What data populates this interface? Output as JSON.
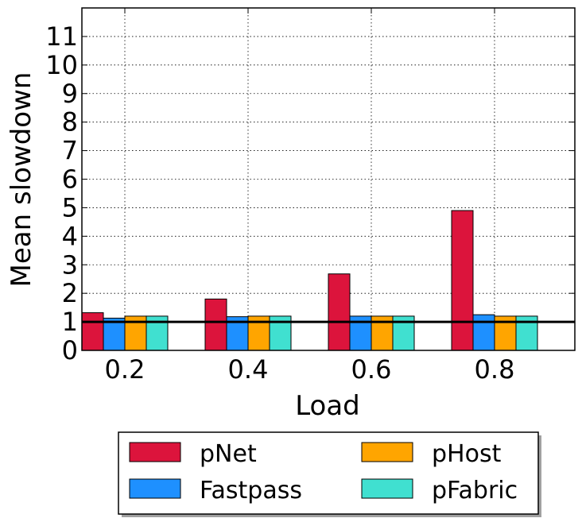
{
  "chart_data": {
    "type": "bar",
    "xlabel": "Load",
    "ylabel": "Mean slowdown",
    "categories": [
      "0.2",
      "0.4",
      "0.6",
      "0.8"
    ],
    "ylim": [
      0,
      12
    ],
    "yticks": [
      0,
      1,
      2,
      3,
      4,
      5,
      6,
      7,
      8,
      9,
      10,
      11
    ],
    "grid": true,
    "reference_line": 1,
    "legend_position": "bottom",
    "series": [
      {
        "name": "pNet",
        "color": "#DC143C",
        "values": [
          1.32,
          1.8,
          2.68,
          4.9
        ]
      },
      {
        "name": "Fastpass",
        "color": "#1E90FF",
        "values": [
          1.13,
          1.18,
          1.2,
          1.25
        ]
      },
      {
        "name": "pHost",
        "color": "#FFA500",
        "values": [
          1.2,
          1.2,
          1.2,
          1.2
        ]
      },
      {
        "name": "pFabric",
        "color": "#40E0D0",
        "values": [
          1.2,
          1.2,
          1.2,
          1.2
        ]
      }
    ]
  }
}
